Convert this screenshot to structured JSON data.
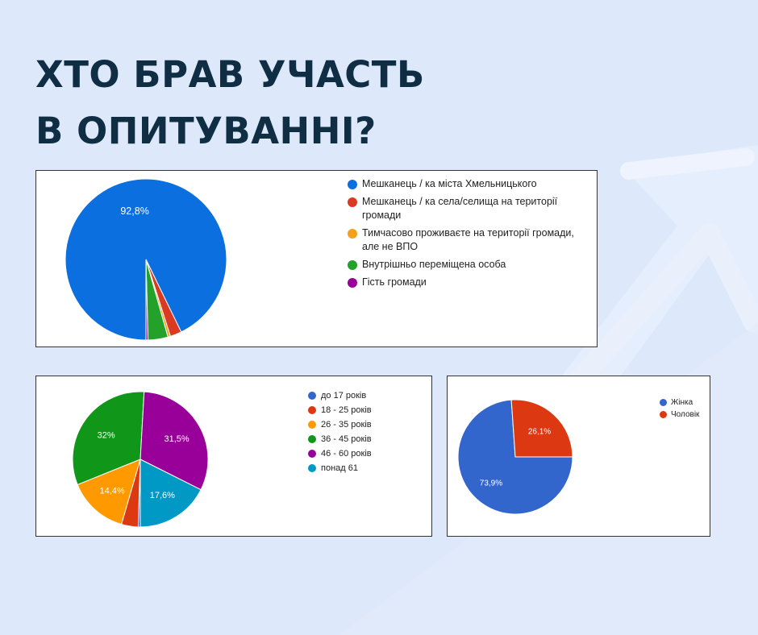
{
  "title_lines": [
    "ХТО БРАВ УЧАСТЬ",
    "В ОПИТУВАННІ?"
  ],
  "chart_data": [
    {
      "type": "pie",
      "title": "",
      "categories": [
        "Мешканець / ка міста Хмельницького",
        "Мешканець / ка села/селища на території громади",
        "Тимчасово проживаєте на території громади, але не ВПО",
        "Внутрішньо переміщена особа",
        "Гість громади"
      ],
      "values": [
        92.8,
        2.3,
        0.5,
        4.0,
        0.4
      ],
      "value_labels": [
        "92,8%",
        "",
        "",
        "",
        ""
      ],
      "colors": [
        "#0b6fe0",
        "#db3a22",
        "#f5a01b",
        "#23a12b",
        "#990099"
      ],
      "legend": "right"
    },
    {
      "type": "pie",
      "title": "",
      "categories": [
        "до 17 років",
        "18 - 25 років",
        "26 - 35 років",
        "36 - 45 років",
        "46 - 60 років",
        "понад 61"
      ],
      "values": [
        0.5,
        4.0,
        14.4,
        32.0,
        31.5,
        17.6
      ],
      "value_labels": [
        "",
        "",
        "14,4%",
        "32%",
        "31,5%",
        "17,6%"
      ],
      "colors": [
        "#3366cc",
        "#dc3912",
        "#ff9900",
        "#109618",
        "#990099",
        "#0099c6"
      ],
      "legend": "right"
    },
    {
      "type": "pie",
      "title": "",
      "categories": [
        "Жінка",
        "Чоловік"
      ],
      "values": [
        73.9,
        26.1
      ],
      "value_labels": [
        "73,9%",
        "26,1%"
      ],
      "colors": [
        "#3366cc",
        "#dc3912"
      ],
      "legend": "right"
    }
  ]
}
